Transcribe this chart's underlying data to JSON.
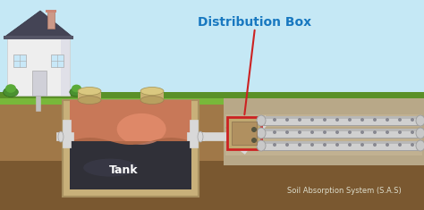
{
  "bg_sky_color": "#c5e8f5",
  "bg_grass_color": "#78b83a",
  "bg_grass_dark": "#5a9028",
  "bg_soil_color": "#a07848",
  "bg_soil_dark": "#7a5830",
  "title": "Distribution Box",
  "title_color": "#1878c0",
  "label_tank": "Tank",
  "label_tank_color": "#ffffff",
  "label_sas": "Soil Absorption System (S.A.S)",
  "label_sas_color": "#ddddcc",
  "tank_wall": "#c8b07a",
  "tank_inner_top": "#c87050",
  "tank_inner_mid": "#d08060",
  "tank_inner_dark": "#303035",
  "tank_border_color": "#a89060",
  "dbox_color": "#c0a870",
  "dbox_inner": "#b09060",
  "dbox_border_color": "#cc2222",
  "pipe_color": "#d8d8d8",
  "pipe_shadow": "#a0a0a0",
  "pipe_dark": "#888888",
  "house_wall": "#eeeeee",
  "house_wall2": "#e0e0e8",
  "house_roof": "#444455",
  "house_roof_top": "#cc4444",
  "chimney_color": "#cc9988",
  "bush_color": "#4a9030",
  "gravel_color": "#b8a080",
  "arrow_color": "#cc2222",
  "lid_color": "#c8b070",
  "lid_top": "#dac880"
}
